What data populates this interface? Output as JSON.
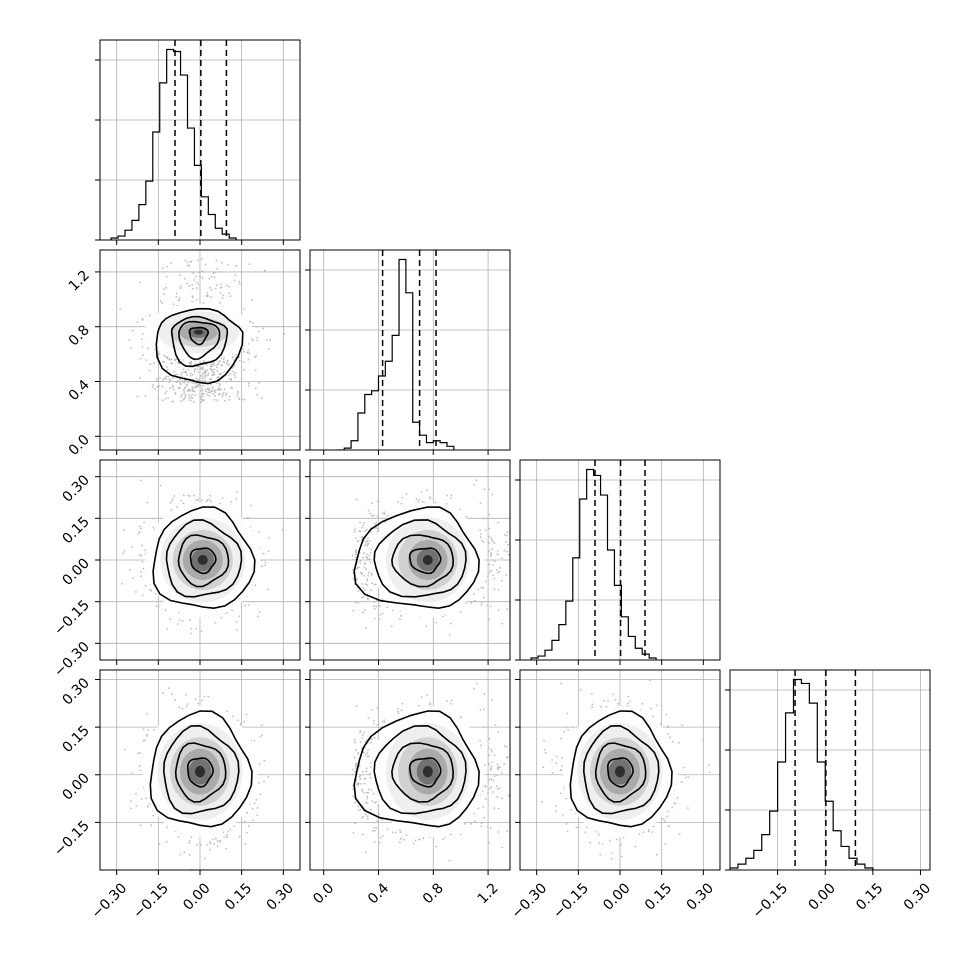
{
  "chart_data": {
    "type": "corner",
    "title": "",
    "grid": true,
    "n_params": 4,
    "params": [
      {
        "range": [
          -0.36,
          0.36
        ],
        "ticks": [
          -0.3,
          -0.15,
          0.0,
          0.15,
          0.3
        ],
        "tick_labels": [
          "−0.30",
          "−0.15",
          "0.00",
          "0.15",
          "0.30"
        ]
      },
      {
        "range": [
          -0.1,
          1.36
        ],
        "ticks": [
          0.0,
          0.4,
          0.8,
          1.2
        ],
        "tick_labels": [
          "0.0",
          "0.4",
          "0.8",
          "1.2"
        ]
      },
      {
        "range": [
          -0.36,
          0.36
        ],
        "ticks": [
          -0.3,
          -0.15,
          0.0,
          0.15,
          0.3
        ],
        "tick_labels": [
          "−0.30",
          "−0.15",
          "0.00",
          "0.15",
          "0.30"
        ]
      },
      {
        "range": [
          -0.3,
          0.33
        ],
        "ticks": [
          -0.15,
          0.0,
          0.15,
          0.3
        ],
        "tick_labels": [
          "−0.15",
          "0.00",
          "0.15",
          "0.30"
        ]
      }
    ],
    "histograms": [
      {
        "param": 0,
        "bins_start": -0.32,
        "bin_width": 0.025,
        "counts": [
          1,
          2,
          5,
          10,
          18,
          30,
          55,
          80,
          97,
          96,
          84,
          57,
          38,
          22,
          13,
          6,
          3,
          1
        ],
        "quantiles": [
          -0.09,
          0.003,
          0.095
        ]
      },
      {
        "param": 1,
        "bins_start": 0.1,
        "bin_width": 0.05,
        "counts": [
          0,
          1,
          5,
          20,
          30,
          32,
          40,
          48,
          62,
          103,
          85,
          15,
          8,
          4,
          5,
          4,
          2
        ],
        "quantiles": [
          0.43,
          0.7,
          0.82
        ]
      },
      {
        "param": 2,
        "bins_start": -0.32,
        "bin_width": 0.025,
        "counts": [
          1,
          2,
          5,
          10,
          18,
          30,
          52,
          82,
          97,
          94,
          84,
          56,
          38,
          22,
          12,
          6,
          3,
          1
        ],
        "quantiles": [
          -0.09,
          0.002,
          0.09
        ]
      },
      {
        "param": 3,
        "bins_start": -0.3,
        "bin_width": 0.025,
        "counts": [
          1,
          3,
          6,
          10,
          18,
          30,
          55,
          80,
          97,
          95,
          85,
          55,
          35,
          20,
          12,
          6,
          3,
          1
        ],
        "quantiles": [
          -0.095,
          0.002,
          0.095
        ]
      }
    ],
    "joint": [
      {
        "x": 0,
        "y": 1,
        "mean": [
          0.0,
          0.74
        ],
        "sd": [
          0.085,
          0.18
        ],
        "peak": [
          -0.005,
          0.76
        ],
        "contour_levels": [
          0.39,
          0.86,
          1.18,
          1.8
        ]
      },
      {
        "x": 0,
        "y": 2,
        "mean": [
          0.0,
          0.0
        ],
        "sd": [
          0.09,
          0.09
        ],
        "peak": [
          0.01,
          0.0
        ],
        "contour_levels": [
          0.5,
          1.0,
          1.5,
          2.0
        ]
      },
      {
        "x": 1,
        "y": 2,
        "mean": [
          0.74,
          0.0
        ],
        "sd": [
          0.18,
          0.09
        ],
        "peak": [
          0.76,
          0.0
        ],
        "contour_levels": [
          0.5,
          1.0,
          1.5,
          2.0
        ]
      },
      {
        "x": 0,
        "y": 3,
        "mean": [
          0.0,
          0.0
        ],
        "sd": [
          0.09,
          0.09
        ],
        "peak": [
          0.0,
          0.01
        ],
        "contour_levels": [
          0.5,
          1.0,
          1.5,
          2.0
        ]
      },
      {
        "x": 1,
        "y": 3,
        "mean": [
          0.74,
          0.0
        ],
        "sd": [
          0.18,
          0.09
        ],
        "peak": [
          0.76,
          0.01
        ],
        "contour_levels": [
          0.5,
          1.0,
          1.5,
          2.0
        ]
      },
      {
        "x": 2,
        "y": 3,
        "mean": [
          0.0,
          0.0
        ],
        "sd": [
          0.09,
          0.09
        ],
        "peak": [
          0.0,
          0.01
        ],
        "contour_levels": [
          0.5,
          1.0,
          1.5,
          2.0
        ]
      }
    ],
    "colors": {
      "line": "#000000",
      "grid": "#b0b0b0",
      "scatter": "#bdbdbd",
      "density_dark": "#1a1a1a"
    }
  }
}
